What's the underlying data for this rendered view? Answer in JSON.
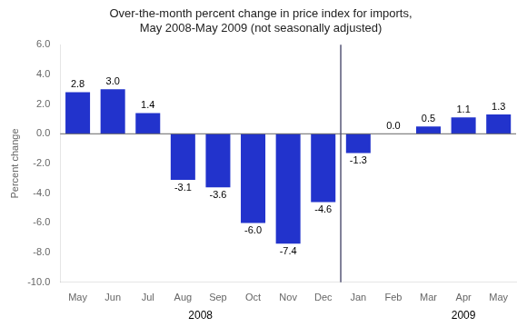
{
  "chart_data": {
    "type": "bar",
    "title": "Over-the-month percent change in price index for imports,\nMay 2008-May 2009 (not seasonally adjusted)",
    "ylabel": "Percent change",
    "categories": [
      "May",
      "Jun",
      "Jul",
      "Aug",
      "Sep",
      "Oct",
      "Nov",
      "Dec",
      "Jan",
      "Feb",
      "Mar",
      "Apr",
      "May"
    ],
    "values": [
      2.8,
      3.0,
      1.4,
      -3.1,
      -3.6,
      -6.0,
      -7.4,
      -4.6,
      -1.3,
      0.0,
      0.5,
      1.1,
      1.3
    ],
    "value_labels": [
      "2.8",
      "3.0",
      "1.4",
      "-3.1",
      "-3.6",
      "-6.0",
      "-7.4",
      "-4.6",
      "-1.3",
      "0.0",
      "0.5",
      "1.1",
      "1.3"
    ],
    "color": "#2233cc",
    "data_labels": true,
    "ylim": [
      -10.0,
      6.0
    ],
    "yticks": [
      {
        "value": -10.0,
        "label": "-10.0"
      },
      {
        "value": -8.0,
        "label": "-8.0"
      },
      {
        "value": -6.0,
        "label": "-6.0"
      },
      {
        "value": -4.0,
        "label": "-4.0"
      },
      {
        "value": -2.0,
        "label": "-2.0"
      },
      {
        "value": 0.0,
        "label": "0.0"
      },
      {
        "value": 2.0,
        "label": "2.0"
      },
      {
        "value": 4.0,
        "label": "4.0"
      },
      {
        "value": 6.0,
        "label": "6.0"
      }
    ],
    "grid": false,
    "annotations": [
      {
        "text": "2008",
        "x": 3.5
      },
      {
        "text": "2009",
        "x": 11.0
      }
    ]
  }
}
